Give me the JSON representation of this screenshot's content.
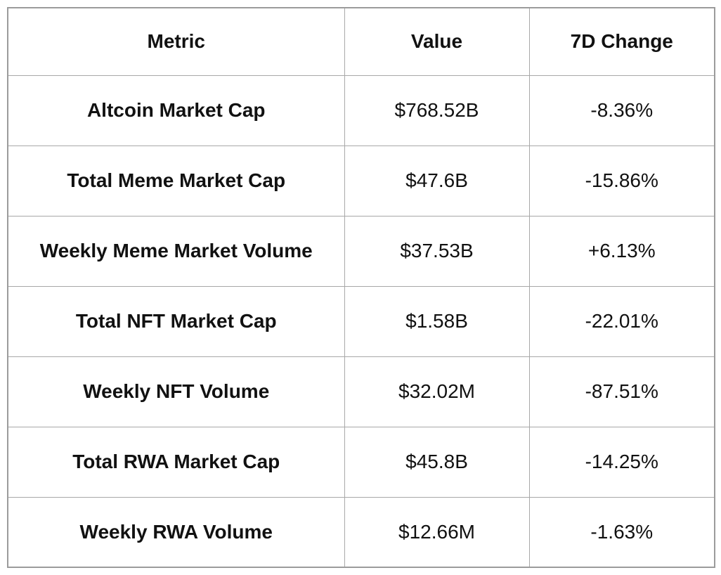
{
  "chart_data": {
    "type": "table",
    "columns": [
      "Metric",
      "Value",
      "7D Change"
    ],
    "rows": [
      [
        "Altcoin Market Cap",
        "$768.52B",
        "-8.36%"
      ],
      [
        "Total Meme Market Cap",
        "$47.6B",
        "-15.86%"
      ],
      [
        "Weekly Meme Market Volume",
        "$37.53B",
        "+6.13%"
      ],
      [
        "Total NFT Market Cap",
        "$1.58B",
        "-22.01%"
      ],
      [
        "Weekly NFT Volume",
        "$32.02M",
        "-87.51%"
      ],
      [
        "Total RWA Market Cap",
        "$45.8B",
        "-14.25%"
      ],
      [
        "Weekly RWA Volume",
        "$12.66M",
        "-1.63%"
      ]
    ]
  },
  "colors": {
    "text": "#111111",
    "background": "#ffffff",
    "outer_border": "#9b9b9b",
    "inner_border": "#a8a8a8"
  }
}
